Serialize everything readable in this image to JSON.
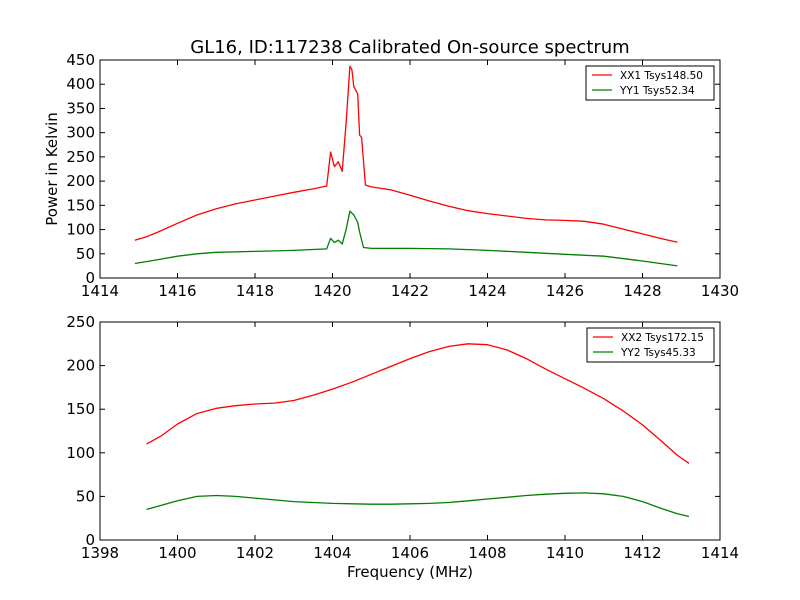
{
  "chart_data": [
    {
      "type": "line",
      "title": "GL16, ID:117238 Calibrated On-source spectrum",
      "xlabel": "",
      "ylabel": "Power in Kelvin",
      "xlim": [
        1414,
        1430
      ],
      "ylim": [
        0,
        450
      ],
      "xticks": [
        "1414",
        "1416",
        "1418",
        "1420",
        "1422",
        "1424",
        "1426",
        "1428",
        "1430"
      ],
      "yticks": [
        "0",
        "50",
        "100",
        "150",
        "200",
        "250",
        "300",
        "350",
        "400",
        "450"
      ],
      "grid": false,
      "legend": "top-right",
      "series": [
        {
          "name": "XX1 Tsys148.50",
          "color": "#ff0000",
          "points": [
            [
              1414.9,
              78
            ],
            [
              1415.2,
              85
            ],
            [
              1415.5,
              95
            ],
            [
              1416.0,
              113
            ],
            [
              1416.5,
              130
            ],
            [
              1417.0,
              143
            ],
            [
              1417.5,
              153
            ],
            [
              1418.0,
              161
            ],
            [
              1418.5,
              169
            ],
            [
              1419.0,
              177
            ],
            [
              1419.5,
              184
            ],
            [
              1419.85,
              190
            ],
            [
              1419.95,
              260
            ],
            [
              1420.05,
              230
            ],
            [
              1420.15,
              240
            ],
            [
              1420.25,
              220
            ],
            [
              1420.35,
              320
            ],
            [
              1420.45,
              437
            ],
            [
              1420.5,
              430
            ],
            [
              1420.55,
              395
            ],
            [
              1420.65,
              380
            ],
            [
              1420.7,
              295
            ],
            [
              1420.75,
              290
            ],
            [
              1420.85,
              192
            ],
            [
              1421.0,
              188
            ],
            [
              1421.5,
              182
            ],
            [
              1422.0,
              171
            ],
            [
              1422.5,
              159
            ],
            [
              1423.0,
              148
            ],
            [
              1423.5,
              139
            ],
            [
              1424.0,
              133
            ],
            [
              1424.5,
              128
            ],
            [
              1425.0,
              123
            ],
            [
              1425.5,
              120
            ],
            [
              1426.0,
              119
            ],
            [
              1426.5,
              117
            ],
            [
              1427.0,
              111
            ],
            [
              1427.5,
              101
            ],
            [
              1428.0,
              91
            ],
            [
              1428.5,
              81
            ],
            [
              1428.9,
              74
            ]
          ]
        },
        {
          "name": "YY1 Tsys52.34",
          "color": "#007f00",
          "points": [
            [
              1414.9,
              30
            ],
            [
              1415.5,
              38
            ],
            [
              1416.0,
              45
            ],
            [
              1416.5,
              50
            ],
            [
              1417.0,
              53
            ],
            [
              1418.0,
              55
            ],
            [
              1419.0,
              57
            ],
            [
              1419.85,
              60
            ],
            [
              1419.95,
              82
            ],
            [
              1420.05,
              73
            ],
            [
              1420.15,
              78
            ],
            [
              1420.25,
              70
            ],
            [
              1420.35,
              100
            ],
            [
              1420.45,
              138
            ],
            [
              1420.55,
              130
            ],
            [
              1420.65,
              115
            ],
            [
              1420.7,
              95
            ],
            [
              1420.8,
              63
            ],
            [
              1421.0,
              61
            ],
            [
              1422.0,
              61
            ],
            [
              1423.0,
              60
            ],
            [
              1424.0,
              57
            ],
            [
              1425.0,
              53
            ],
            [
              1426.0,
              49
            ],
            [
              1427.0,
              45
            ],
            [
              1428.0,
              35
            ],
            [
              1428.9,
              25
            ]
          ]
        }
      ]
    },
    {
      "type": "line",
      "title": "",
      "xlabel": "Frequency (MHz)",
      "ylabel": "",
      "xlim": [
        1398,
        1414
      ],
      "ylim": [
        0,
        250
      ],
      "xticks": [
        "1398",
        "1400",
        "1402",
        "1404",
        "1406",
        "1408",
        "1410",
        "1412",
        "1414"
      ],
      "yticks": [
        "0",
        "50",
        "100",
        "150",
        "200",
        "250"
      ],
      "grid": false,
      "legend": "top-right",
      "series": [
        {
          "name": "XX2 Tsys172.15",
          "color": "#ff0000",
          "points": [
            [
              1399.2,
              110
            ],
            [
              1399.6,
              120
            ],
            [
              1400.0,
              133
            ],
            [
              1400.5,
              145
            ],
            [
              1401.0,
              151
            ],
            [
              1401.5,
              154
            ],
            [
              1402.0,
              156
            ],
            [
              1402.5,
              157
            ],
            [
              1403.0,
              160
            ],
            [
              1403.5,
              166
            ],
            [
              1404.0,
              173
            ],
            [
              1404.5,
              181
            ],
            [
              1405.0,
              190
            ],
            [
              1405.5,
              199
            ],
            [
              1406.0,
              208
            ],
            [
              1406.5,
              216
            ],
            [
              1407.0,
              222
            ],
            [
              1407.5,
              225
            ],
            [
              1408.0,
              224
            ],
            [
              1408.5,
              218
            ],
            [
              1409.0,
              208
            ],
            [
              1409.5,
              196
            ],
            [
              1410.0,
              185
            ],
            [
              1410.5,
              174
            ],
            [
              1411.0,
              162
            ],
            [
              1411.5,
              148
            ],
            [
              1412.0,
              132
            ],
            [
              1412.5,
              113
            ],
            [
              1412.9,
              97
            ],
            [
              1413.2,
              88
            ]
          ]
        },
        {
          "name": "YY2 Tsys45.33",
          "color": "#007f00",
          "points": [
            [
              1399.2,
              35
            ],
            [
              1399.6,
              40
            ],
            [
              1400.0,
              45
            ],
            [
              1400.5,
              50
            ],
            [
              1401.0,
              51
            ],
            [
              1401.5,
              50
            ],
            [
              1402.0,
              48
            ],
            [
              1402.5,
              46
            ],
            [
              1403.0,
              44
            ],
            [
              1403.5,
              43
            ],
            [
              1404.0,
              42
            ],
            [
              1404.5,
              41.5
            ],
            [
              1405.0,
              41
            ],
            [
              1405.5,
              41
            ],
            [
              1406.0,
              41.5
            ],
            [
              1406.5,
              42
            ],
            [
              1407.0,
              43
            ],
            [
              1407.5,
              45
            ],
            [
              1408.0,
              47
            ],
            [
              1408.5,
              49
            ],
            [
              1409.0,
              51
            ],
            [
              1409.5,
              52.5
            ],
            [
              1410.0,
              53.5
            ],
            [
              1410.5,
              54
            ],
            [
              1411.0,
              53
            ],
            [
              1411.5,
              50
            ],
            [
              1412.0,
              44
            ],
            [
              1412.5,
              36
            ],
            [
              1412.9,
              30
            ],
            [
              1413.2,
              27
            ]
          ]
        }
      ]
    }
  ]
}
